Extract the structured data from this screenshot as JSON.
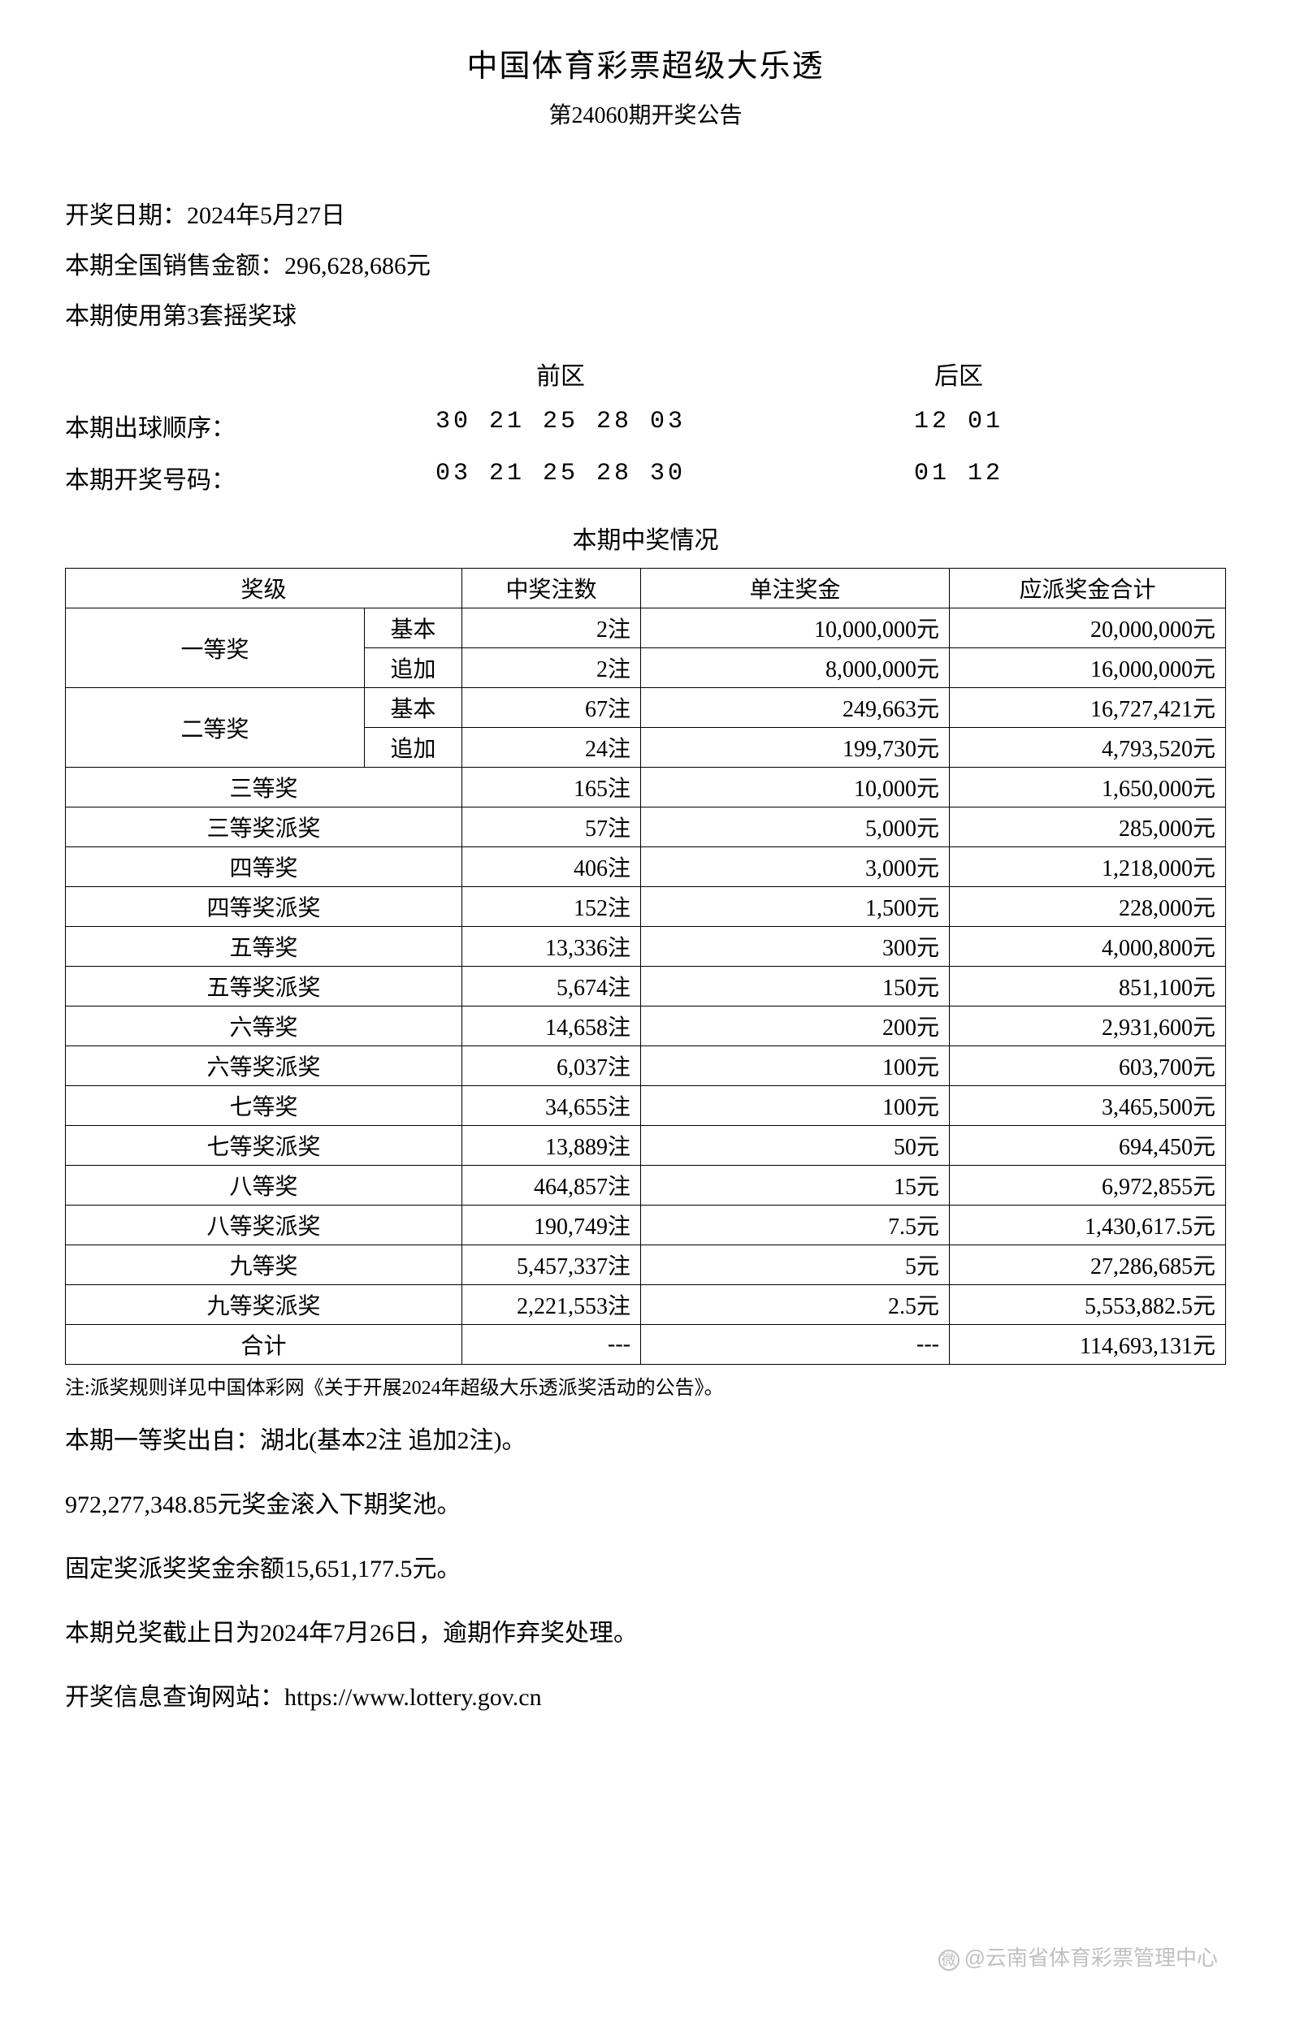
{
  "header": {
    "title": "中国体育彩票超级大乐透",
    "issue": "第24060期开奖公告"
  },
  "info": {
    "draw_date_label": "开奖日期：",
    "draw_date": "2024年5月27日",
    "sales_label": "本期全国销售金额：",
    "sales_amount": "296,628,686元",
    "ball_set": "本期使用第3套摇奖球"
  },
  "balls": {
    "front_label": "前区",
    "back_label": "后区",
    "draw_order_label": "本期出球顺序：",
    "draw_order_front": "30 21 25 28 03",
    "draw_order_back": "12 01",
    "winning_label": "本期开奖号码：",
    "winning_front": "03 21 25 28 30",
    "winning_back": "01 12"
  },
  "prize_section_title": "本期中奖情况",
  "table": {
    "columns": [
      "奖级",
      "中奖注数",
      "单注奖金",
      "应派奖金合计"
    ],
    "sub_basic": "基本",
    "sub_add": "追加",
    "level1": "一等奖",
    "level2": "二等奖",
    "rows_grouped": [
      {
        "level": "一等奖",
        "sub": "基本",
        "count": "2注",
        "unit": "10,000,000元",
        "total": "20,000,000元"
      },
      {
        "level": "一等奖",
        "sub": "追加",
        "count": "2注",
        "unit": "8,000,000元",
        "total": "16,000,000元"
      },
      {
        "level": "二等奖",
        "sub": "基本",
        "count": "67注",
        "unit": "249,663元",
        "total": "16,727,421元"
      },
      {
        "level": "二等奖",
        "sub": "追加",
        "count": "24注",
        "unit": "199,730元",
        "total": "4,793,520元"
      }
    ],
    "rows_single": [
      {
        "level": "三等奖",
        "count": "165注",
        "unit": "10,000元",
        "total": "1,650,000元"
      },
      {
        "level": "三等奖派奖",
        "count": "57注",
        "unit": "5,000元",
        "total": "285,000元"
      },
      {
        "level": "四等奖",
        "count": "406注",
        "unit": "3,000元",
        "total": "1,218,000元"
      },
      {
        "level": "四等奖派奖",
        "count": "152注",
        "unit": "1,500元",
        "total": "228,000元"
      },
      {
        "level": "五等奖",
        "count": "13,336注",
        "unit": "300元",
        "total": "4,000,800元"
      },
      {
        "level": "五等奖派奖",
        "count": "5,674注",
        "unit": "150元",
        "total": "851,100元"
      },
      {
        "level": "六等奖",
        "count": "14,658注",
        "unit": "200元",
        "total": "2,931,600元"
      },
      {
        "level": "六等奖派奖",
        "count": "6,037注",
        "unit": "100元",
        "total": "603,700元"
      },
      {
        "level": "七等奖",
        "count": "34,655注",
        "unit": "100元",
        "total": "3,465,500元"
      },
      {
        "level": "七等奖派奖",
        "count": "13,889注",
        "unit": "50元",
        "total": "694,450元"
      },
      {
        "level": "八等奖",
        "count": "464,857注",
        "unit": "15元",
        "total": "6,972,855元"
      },
      {
        "level": "八等奖派奖",
        "count": "190,749注",
        "unit": "7.5元",
        "total": "1,430,617.5元"
      },
      {
        "level": "九等奖",
        "count": "5,457,337注",
        "unit": "5元",
        "total": "27,286,685元"
      },
      {
        "level": "九等奖派奖",
        "count": "2,221,553注",
        "unit": "2.5元",
        "total": "5,553,882.5元"
      }
    ],
    "total_row": {
      "level": "合计",
      "count": "---",
      "unit": "---",
      "total": "114,693,131元"
    }
  },
  "note": "注:派奖规则详见中国体彩网《关于开展2024年超级大乐透派奖活动的公告》。",
  "footer": {
    "line1": "本期一等奖出自：湖北(基本2注 追加2注)。",
    "line2": "972,277,348.85元奖金滚入下期奖池。",
    "line3": "固定奖派奖奖金余额15,651,177.5元。",
    "line4": "本期兑奖截止日为2024年7月26日，逾期作弃奖处理。",
    "line5": "开奖信息查询网站：https://www.lottery.gov.cn"
  },
  "watermark": "@云南省体育彩票管理中心"
}
